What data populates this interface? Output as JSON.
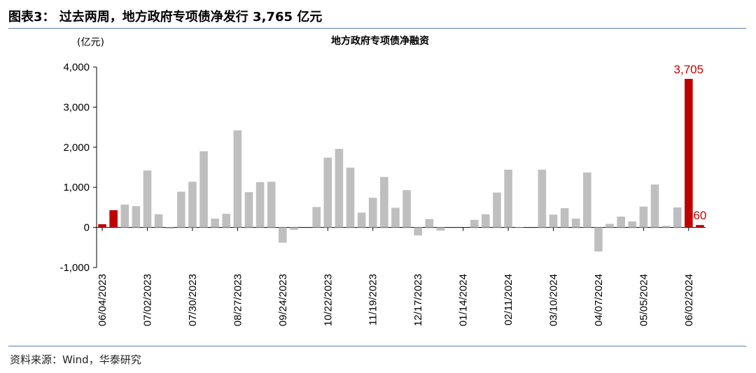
{
  "figure_title": "图表3：  过去两周，地方政府专项债净发行 3,765 亿元",
  "source": "资料来源：Wind，华泰研究",
  "chart_data": {
    "type": "bar",
    "title": "地方政府专项债净融资",
    "ylabel": "(亿元)",
    "ylim": [
      -1000,
      4000
    ],
    "yticks": [
      -1000,
      0,
      1000,
      2000,
      3000,
      4000
    ],
    "ytick_labels": [
      "-1,000",
      "0",
      "1,000",
      "2,000",
      "3,000",
      "4,000"
    ],
    "x_tick_labels": [
      "06/04/2023",
      "07/02/2023",
      "07/30/2023",
      "08/27/2023",
      "09/24/2023",
      "10/22/2023",
      "11/19/2023",
      "12/17/2023",
      "01/14/2024",
      "02/11/2024",
      "03/10/2024",
      "04/07/2024",
      "05/05/2024",
      "06/02/2024"
    ],
    "x_tick_every": 4,
    "colors": {
      "normal": "#bfbfbf",
      "highlight": "#c00000"
    },
    "values": [
      80,
      430,
      570,
      530,
      1420,
      330,
      -30,
      890,
      1140,
      1900,
      220,
      340,
      2420,
      880,
      1130,
      1140,
      -380,
      -60,
      0,
      510,
      1740,
      1960,
      1490,
      370,
      740,
      1260,
      490,
      930,
      -200,
      210,
      -80,
      0,
      0,
      190,
      330,
      870,
      1440,
      10,
      0,
      1440,
      320,
      480,
      220,
      1370,
      -600,
      90,
      270,
      150,
      520,
      1070,
      40,
      500,
      3705,
      60
    ],
    "highlight_indices": [
      0,
      1,
      52,
      53
    ],
    "data_labels": [
      {
        "index": 52,
        "text": "3,705"
      },
      {
        "index": 53,
        "text": "60"
      }
    ]
  }
}
